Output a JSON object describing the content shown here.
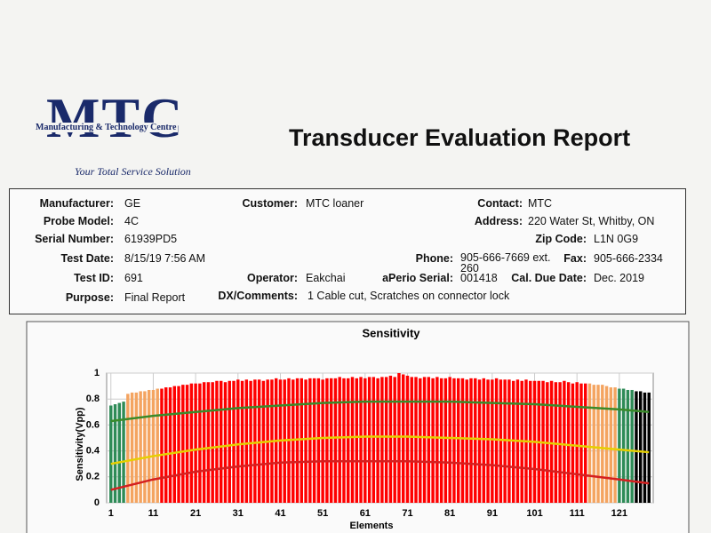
{
  "header": {
    "logo": "MTC",
    "company": "Manufacturing & Technology Centre",
    "tagline": "Your Total Service Solution",
    "title": "Transducer Evaluation Report"
  },
  "fields": [
    {
      "label": "Manufacturer:",
      "value": "GE"
    },
    {
      "label": "Probe Model:",
      "value": "4C"
    },
    {
      "label": "Serial Number:",
      "value": "61939PD5"
    },
    {
      "label": "Test Date:",
      "value": "8/15/19 7:56 AM"
    },
    {
      "label": "Test ID:",
      "value": "691"
    },
    {
      "label": "Purpose:",
      "value": "Final Report"
    },
    {
      "label": "Customer:",
      "value": "MTC loaner"
    },
    {
      "label": "Operator:",
      "value": "Eakchai"
    },
    {
      "label": "DX/Comments:",
      "value": "1 Cable cut, Scratches on connector lock"
    },
    {
      "label": "Phone:",
      "value": "905-666-7669 ext. 260"
    },
    {
      "label": "aPerio Serial:",
      "value": "001418"
    },
    {
      "label": "Contact:",
      "value": "MTC"
    },
    {
      "label": "Address:",
      "value": "220 Water St, Whitby, ON"
    },
    {
      "label": "Zip Code:",
      "value": "L1N 0G9"
    },
    {
      "label": "Fax:",
      "value": "905-666-2334"
    },
    {
      "label": "Cal. Due Date:",
      "value": "Dec. 2019"
    }
  ],
  "chart_data": {
    "type": "bar",
    "title": "Sensitivity",
    "x_label": "Elements",
    "y_label": "Sensitivity(Vpp)",
    "x": [
      1,
      2,
      3,
      4,
      5,
      6,
      7,
      8,
      9,
      10,
      11,
      12,
      13,
      14,
      15,
      16,
      17,
      18,
      19,
      20,
      21,
      22,
      23,
      24,
      25,
      26,
      27,
      28,
      29,
      30,
      31,
      32,
      33,
      34,
      35,
      36,
      37,
      38,
      39,
      40,
      41,
      42,
      43,
      44,
      45,
      46,
      47,
      48,
      49,
      50,
      51,
      52,
      53,
      54,
      55,
      56,
      57,
      58,
      59,
      60,
      61,
      62,
      63,
      64,
      65,
      66,
      67,
      68,
      69,
      70,
      71,
      72,
      73,
      74,
      75,
      76,
      77,
      78,
      79,
      80,
      81,
      82,
      83,
      84,
      85,
      86,
      87,
      88,
      89,
      90,
      91,
      92,
      93,
      94,
      95,
      96,
      97,
      98,
      99,
      100,
      101,
      102,
      103,
      104,
      105,
      106,
      107,
      108,
      109,
      110,
      111,
      112,
      113,
      114,
      115,
      116,
      117,
      118,
      119,
      120,
      121,
      122,
      123,
      124,
      125,
      126,
      127,
      128
    ],
    "values": [
      0.75,
      0.76,
      0.77,
      0.78,
      0.84,
      0.85,
      0.85,
      0.86,
      0.86,
      0.87,
      0.87,
      0.88,
      0.88,
      0.89,
      0.89,
      0.9,
      0.9,
      0.91,
      0.91,
      0.92,
      0.92,
      0.92,
      0.93,
      0.93,
      0.93,
      0.94,
      0.94,
      0.93,
      0.94,
      0.94,
      0.95,
      0.94,
      0.95,
      0.94,
      0.95,
      0.95,
      0.94,
      0.95,
      0.95,
      0.96,
      0.95,
      0.95,
      0.96,
      0.95,
      0.96,
      0.96,
      0.95,
      0.96,
      0.96,
      0.96,
      0.95,
      0.96,
      0.96,
      0.96,
      0.97,
      0.96,
      0.96,
      0.97,
      0.96,
      0.97,
      0.96,
      0.97,
      0.97,
      0.96,
      0.97,
      0.97,
      0.98,
      0.97,
      1.0,
      0.99,
      0.98,
      0.97,
      0.97,
      0.96,
      0.97,
      0.97,
      0.96,
      0.97,
      0.96,
      0.96,
      0.97,
      0.96,
      0.96,
      0.96,
      0.95,
      0.96,
      0.96,
      0.95,
      0.96,
      0.95,
      0.95,
      0.96,
      0.95,
      0.95,
      0.95,
      0.94,
      0.95,
      0.94,
      0.95,
      0.94,
      0.94,
      0.94,
      0.94,
      0.93,
      0.94,
      0.93,
      0.93,
      0.94,
      0.93,
      0.92,
      0.93,
      0.92,
      0.92,
      0.92,
      0.91,
      0.91,
      0.91,
      0.9,
      0.89,
      0.89,
      0.88,
      0.88,
      0.87,
      0.87,
      0.86,
      0.86,
      0.85,
      0.85
    ],
    "bar_colors": [
      "seagreen",
      "seagreen",
      "seagreen",
      "seagreen",
      "sandybrown",
      "sandybrown",
      "sandybrown",
      "sandybrown",
      "sandybrown",
      "sandybrown",
      "sandybrown",
      "sandybrown",
      "red",
      "red",
      "red",
      "red",
      "red",
      "red",
      "red",
      "red",
      "red",
      "red",
      "red",
      "red",
      "red",
      "red",
      "red",
      "red",
      "red",
      "red",
      "red",
      "red",
      "red",
      "red",
      "red",
      "red",
      "red",
      "red",
      "red",
      "red",
      "red",
      "red",
      "red",
      "red",
      "red",
      "red",
      "red",
      "red",
      "red",
      "red",
      "red",
      "red",
      "red",
      "red",
      "red",
      "red",
      "red",
      "red",
      "red",
      "red",
      "red",
      "red",
      "red",
      "red",
      "red",
      "red",
      "red",
      "red",
      "red",
      "red",
      "red",
      "red",
      "red",
      "red",
      "red",
      "red",
      "red",
      "red",
      "red",
      "red",
      "red",
      "red",
      "red",
      "red",
      "red",
      "red",
      "red",
      "red",
      "red",
      "red",
      "red",
      "red",
      "red",
      "red",
      "red",
      "red",
      "red",
      "red",
      "red",
      "red",
      "red",
      "red",
      "red",
      "red",
      "red",
      "red",
      "red",
      "red",
      "red",
      "red",
      "red",
      "red",
      "red",
      "sandybrown",
      "sandybrown",
      "sandybrown",
      "sandybrown",
      "sandybrown",
      "sandybrown",
      "sandybrown",
      "seagreen",
      "seagreen",
      "seagreen",
      "seagreen"
    ],
    "lines": [
      {
        "color": "#3a8a2a",
        "x": [
          1,
          11,
          21,
          31,
          41,
          51,
          61,
          71,
          81,
          91,
          101,
          111,
          121,
          128
        ],
        "values": [
          0.63,
          0.67,
          0.7,
          0.73,
          0.75,
          0.77,
          0.78,
          0.78,
          0.78,
          0.77,
          0.76,
          0.74,
          0.72,
          0.7
        ]
      },
      {
        "color": "#e6d000",
        "x": [
          1,
          11,
          21,
          31,
          41,
          51,
          61,
          71,
          81,
          91,
          101,
          111,
          121,
          128
        ],
        "values": [
          0.3,
          0.36,
          0.41,
          0.45,
          0.48,
          0.5,
          0.51,
          0.51,
          0.5,
          0.49,
          0.47,
          0.44,
          0.41,
          0.39
        ]
      },
      {
        "color": "#d42020",
        "x": [
          1,
          11,
          21,
          31,
          41,
          51,
          61,
          71,
          81,
          91,
          101,
          111,
          121,
          128
        ],
        "values": [
          0.1,
          0.18,
          0.24,
          0.28,
          0.31,
          0.32,
          0.32,
          0.32,
          0.31,
          0.29,
          0.26,
          0.22,
          0.18,
          0.15
        ]
      }
    ],
    "xlim": [
      0,
      129
    ],
    "xticks": [
      1,
      11,
      21,
      31,
      41,
      51,
      61,
      71,
      81,
      91,
      101,
      111,
      121
    ],
    "ylim": [
      0,
      1
    ],
    "yticks": [
      0,
      0.2,
      0.4,
      0.6,
      0.8,
      1
    ],
    "grid": true
  }
}
